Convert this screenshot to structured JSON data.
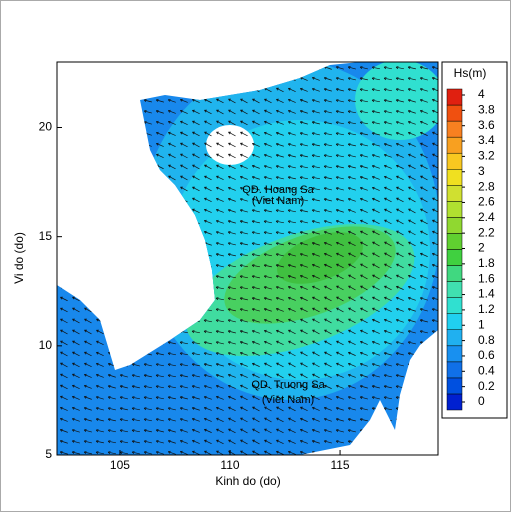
{
  "chart_data": {
    "type": "field-map",
    "xlabel": "Kinh do (do)",
    "ylabel": "Vi do (do)",
    "xlim": [
      102.14,
      119.45
    ],
    "ylim": [
      5,
      23
    ],
    "xticks": [
      105,
      110,
      115
    ],
    "yticks": [
      5,
      10,
      15,
      20
    ],
    "annotations": [
      {
        "text": "QD. Hoang Sa"
      },
      {
        "text": "(Viet Nam)"
      },
      {
        "text": "QD. Truong Sa"
      },
      {
        "text": "(Viet Nam)"
      }
    ],
    "colorbar": {
      "title": "Hs(m)",
      "ticks": [
        0,
        0.2,
        0.4,
        0.6,
        0.8,
        1,
        1.2,
        1.4,
        1.6,
        1.8,
        2,
        2.2,
        2.4,
        2.6,
        2.8,
        3,
        3.2,
        3.4,
        3.6,
        3.8,
        4
      ],
      "colors": [
        "#0020d0",
        "#0050e0",
        "#1070e8",
        "#1890f0",
        "#20b0f0",
        "#20d0f0",
        "#30e0d0",
        "#40e0b0",
        "#40d880",
        "#40d040",
        "#60d030",
        "#90d830",
        "#b0e030",
        "#d0e030",
        "#f0e020",
        "#f8c820",
        "#f8a020",
        "#f88020",
        "#f05010",
        "#e02010"
      ]
    }
  }
}
